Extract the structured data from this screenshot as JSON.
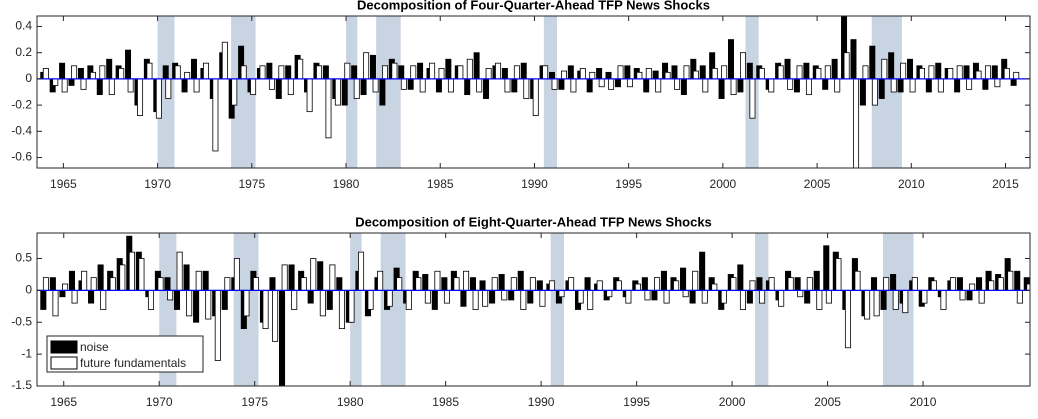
{
  "chart_data": [
    {
      "type": "bar",
      "title": "Decomposition of Four-Quarter-Ahead TFP News Shocks",
      "x": [
        1964,
        1964.5,
        1965,
        1965.5,
        1966,
        1966.5,
        1967,
        1967.5,
        1968,
        1968.5,
        1969,
        1969.5,
        1970,
        1970.5,
        1971,
        1971.5,
        1972,
        1972.5,
        1973,
        1973.5,
        1974,
        1974.5,
        1975,
        1975.5,
        1976,
        1976.5,
        1977,
        1977.5,
        1978,
        1978.5,
        1979,
        1979.5,
        1980,
        1980.5,
        1981,
        1981.5,
        1982,
        1982.5,
        1983,
        1983.5,
        1984,
        1984.5,
        1985,
        1985.5,
        1986,
        1986.5,
        1987,
        1987.5,
        1988,
        1988.5,
        1989,
        1989.5,
        1990,
        1990.5,
        1991,
        1991.5,
        1992,
        1992.5,
        1993,
        1993.5,
        1994,
        1994.5,
        1995,
        1995.5,
        1996,
        1996.5,
        1997,
        1997.5,
        1998,
        1998.5,
        1999,
        1999.5,
        2000,
        2000.5,
        2001,
        2001.5,
        2002,
        2002.5,
        2003,
        2003.5,
        2004,
        2004.5,
        2005,
        2005.5,
        2006,
        2006.5,
        2007,
        2007.5,
        2008,
        2008.5,
        2009,
        2009.5,
        2010,
        2010.5,
        2011,
        2011.5,
        2012,
        2012.5,
        2013,
        2013.5,
        2014,
        2014.5,
        2015,
        2015.5
      ],
      "series": [
        {
          "color": "#000000",
          "values": [
            0.05,
            -0.1,
            0.12,
            -0.05,
            0.08,
            0.1,
            -0.12,
            0.15,
            0.1,
            0.22,
            -0.2,
            0.15,
            -0.25,
            0.1,
            0.12,
            -0.1,
            0.15,
            0.08,
            -0.15,
            0.2,
            -0.3,
            0.25,
            -0.1,
            0.08,
            0.12,
            -0.15,
            0.1,
            0.18,
            -0.1,
            0.12,
            0.1,
            -0.15,
            -0.2,
            0.1,
            -0.12,
            0.18,
            -0.2,
            0.15,
            0.1,
            -0.08,
            0.12,
            0.08,
            -0.1,
            0.15,
            0.1,
            -0.12,
            0.2,
            -0.15,
            0.1,
            0.08,
            -0.1,
            0.12,
            -0.15,
            0.1,
            0.05,
            -0.08,
            0.1,
            0.06,
            -0.1,
            0.08,
            0.05,
            -0.06,
            0.1,
            0.08,
            -0.1,
            0.06,
            0.12,
            0.1,
            -0.12,
            0.15,
            0.1,
            0.2,
            -0.15,
            0.3,
            -0.1,
            0.12,
            0.1,
            -0.08,
            0.12,
            0.15,
            -0.1,
            0.12,
            0.1,
            -0.08,
            0.15,
            0.48,
            0.3,
            -0.2,
            0.25,
            -0.15,
            0.2,
            -0.1,
            0.15,
            0.1,
            -0.1,
            0.12,
            0.08,
            -0.1,
            0.1,
            0.12,
            -0.08,
            0.1,
            0.15,
            -0.05
          ]
        },
        {
          "color": "#ffffff",
          "values": [
            0.08,
            -0.05,
            -0.1,
            0.1,
            -0.08,
            0.05,
            0.1,
            -0.12,
            0.08,
            -0.1,
            -0.28,
            0.12,
            -0.3,
            -0.15,
            0.1,
            0.05,
            -0.1,
            0.12,
            -0.55,
            0.28,
            -0.2,
            0.1,
            -0.12,
            0.1,
            -0.08,
            0.1,
            -0.12,
            0.15,
            -0.25,
            0.1,
            -0.45,
            -0.2,
            0.12,
            -0.15,
            0.2,
            -0.1,
            0.1,
            0.12,
            -0.08,
            0.1,
            -0.1,
            0.12,
            0.08,
            -0.1,
            0.1,
            0.15,
            -0.1,
            0.08,
            0.12,
            -0.1,
            0.1,
            -0.15,
            -0.28,
            0.1,
            -0.08,
            0.06,
            -0.1,
            0.08,
            0.05,
            -0.06,
            -0.08,
            0.1,
            -0.06,
            0.05,
            0.08,
            -0.1,
            0.05,
            -0.08,
            0.1,
            0.06,
            -0.1,
            0.08,
            0.1,
            -0.12,
            0.2,
            -0.3,
            0.08,
            -0.1,
            0.1,
            -0.08,
            0.1,
            -0.12,
            0.08,
            0.1,
            -0.1,
            0.2,
            -0.68,
            0.1,
            -0.2,
            0.15,
            -0.1,
            0.12,
            -0.1,
            0.08,
            0.1,
            -0.1,
            0.08,
            0.1,
            -0.08,
            0.06,
            0.1,
            -0.06,
            0.08,
            0.05
          ]
        }
      ],
      "shaded_periods": [
        [
          1970.0,
          1970.9
        ],
        [
          1973.9,
          1975.2
        ],
        [
          1980.0,
          1980.6
        ],
        [
          1981.6,
          1982.9
        ],
        [
          1990.5,
          1991.2
        ],
        [
          2001.2,
          2001.9
        ],
        [
          2007.9,
          2009.5
        ]
      ],
      "shade_color": "#c9d4e3",
      "xlim": [
        1963.6,
        2016.3
      ],
      "xticks": [
        1965,
        1970,
        1975,
        1980,
        1985,
        1990,
        1995,
        2000,
        2005,
        2010,
        2015
      ],
      "ylim": [
        -0.68,
        0.48
      ],
      "yticks": [
        -0.6,
        -0.4,
        -0.2,
        0,
        0.2,
        0.4
      ]
    },
    {
      "type": "bar",
      "title": "Decomposition of Eight-Quarter-Ahead TFP News Shocks",
      "x": [
        1964,
        1964.5,
        1965,
        1965.5,
        1966,
        1966.5,
        1967,
        1967.5,
        1968,
        1968.5,
        1969,
        1969.5,
        1970,
        1970.5,
        1971,
        1971.5,
        1972,
        1972.5,
        1973,
        1973.5,
        1974,
        1974.5,
        1975,
        1975.5,
        1976,
        1976.5,
        1977,
        1977.5,
        1978,
        1978.5,
        1979,
        1979.5,
        1980,
        1980.5,
        1981,
        1981.5,
        1982,
        1982.5,
        1983,
        1983.5,
        1984,
        1984.5,
        1985,
        1985.5,
        1986,
        1986.5,
        1987,
        1987.5,
        1988,
        1988.5,
        1989,
        1989.5,
        1990,
        1990.5,
        1991,
        1991.5,
        1992,
        1992.5,
        1993,
        1993.5,
        1994,
        1994.5,
        1995,
        1995.5,
        1996,
        1996.5,
        1997,
        1997.5,
        1998,
        1998.5,
        1999,
        1999.5,
        2000,
        2000.5,
        2001,
        2001.5,
        2002,
        2002.5,
        2003,
        2003.5,
        2004,
        2004.5,
        2005,
        2005.5,
        2006,
        2006.5,
        2007,
        2007.5,
        2008,
        2008.5,
        2009,
        2009.5,
        2010,
        2010.5,
        2011,
        2011.5,
        2012,
        2012.5,
        2013,
        2013.5,
        2014,
        2014.5,
        2015,
        2015.5
      ],
      "series": [
        {
          "name": "noise",
          "color": "#000000",
          "values": [
            -0.3,
            0.2,
            -0.1,
            0.3,
            0.15,
            -0.2,
            0.4,
            0.3,
            0.5,
            0.85,
            0.6,
            -0.1,
            0.3,
            0.2,
            -0.3,
            0.4,
            -0.5,
            0.3,
            -0.4,
            -0.3,
            0.2,
            -0.6,
            0.3,
            -0.5,
            0.2,
            -1.5,
            0.4,
            0.3,
            -0.2,
            0.45,
            -0.3,
            0.2,
            -0.5,
            0.3,
            -0.4,
            0.2,
            -0.3,
            0.35,
            -0.2,
            0.3,
            0.25,
            -0.3,
            0.2,
            0.3,
            -0.25,
            0.2,
            0.15,
            -0.2,
            0.25,
            -0.15,
            0.3,
            -0.2,
            0.15,
            0.1,
            -0.2,
            0.15,
            -0.3,
            0.2,
            0.1,
            -0.15,
            0.2,
            -0.1,
            0.15,
            0.2,
            -0.15,
            0.3,
            0.2,
            0.35,
            -0.2,
            0.6,
            0.2,
            -0.3,
            0.25,
            0.4,
            -0.2,
            0.2,
            0.15,
            -0.15,
            0.3,
            0.2,
            -0.2,
            0.3,
            0.7,
            0.6,
            -0.3,
            0.5,
            -0.4,
            0.2,
            -0.3,
            0.25,
            -0.2,
            0.15,
            -0.25,
            0.2,
            -0.1,
            0.15,
            0.2,
            -0.15,
            0.2,
            0.3,
            0.25,
            0.5,
            0.3,
            0.2
          ]
        },
        {
          "name": "future fundamentals",
          "color": "#ffffff",
          "values": [
            0.2,
            -0.4,
            0.1,
            -0.2,
            0.3,
            0.2,
            -0.3,
            0.2,
            0.4,
            0.6,
            0.5,
            -0.3,
            0.2,
            -0.15,
            0.6,
            -0.4,
            0.3,
            -0.45,
            -1.1,
            0.2,
            0.5,
            -0.4,
            0.2,
            -0.6,
            -0.8,
            0.4,
            -0.3,
            0.2,
            0.5,
            -0.4,
            0.4,
            -0.6,
            -0.5,
            0.6,
            -0.3,
            0.3,
            -0.25,
            0.2,
            -0.3,
            0.2,
            -0.2,
            0.3,
            -0.2,
            0.2,
            0.3,
            -0.3,
            -0.25,
            0.2,
            -0.15,
            0.2,
            -0.3,
            0.2,
            -0.25,
            0.15,
            -0.1,
            0.2,
            -0.2,
            -0.3,
            0.15,
            -0.1,
            0.15,
            -0.2,
            0.1,
            -0.15,
            0.2,
            -0.2,
            0.15,
            -0.1,
            0.3,
            -0.2,
            0.1,
            -0.2,
            0.2,
            -0.3,
            0.15,
            -0.2,
            0.2,
            -0.25,
            0.2,
            -0.1,
            0.2,
            -0.3,
            -0.2,
            0.5,
            -0.9,
            0.3,
            -0.45,
            -0.4,
            0.2,
            -0.3,
            -0.35,
            0.2,
            -0.2,
            0.15,
            -0.3,
            0.2,
            -0.15,
            0.1,
            -0.2,
            0.15,
            0.2,
            0.3,
            -0.2,
            0.1
          ]
        }
      ],
      "shaded_periods": [
        [
          1970.0,
          1970.9
        ],
        [
          1973.9,
          1975.2
        ],
        [
          1980.0,
          1980.6
        ],
        [
          1981.6,
          1982.9
        ],
        [
          1990.5,
          1991.2
        ],
        [
          2001.2,
          2001.9
        ],
        [
          2007.9,
          2009.5
        ]
      ],
      "shade_color": "#c9d4e3",
      "xlim": [
        1963.6,
        2015.6
      ],
      "xticks": [
        1965,
        1970,
        1975,
        1980,
        1985,
        1990,
        1995,
        2000,
        2005,
        2010
      ],
      "ylim": [
        -1.5,
        0.9
      ],
      "yticks": [
        -1.5,
        -1,
        -0.5,
        0,
        0.5
      ],
      "legend": "lower left"
    }
  ]
}
